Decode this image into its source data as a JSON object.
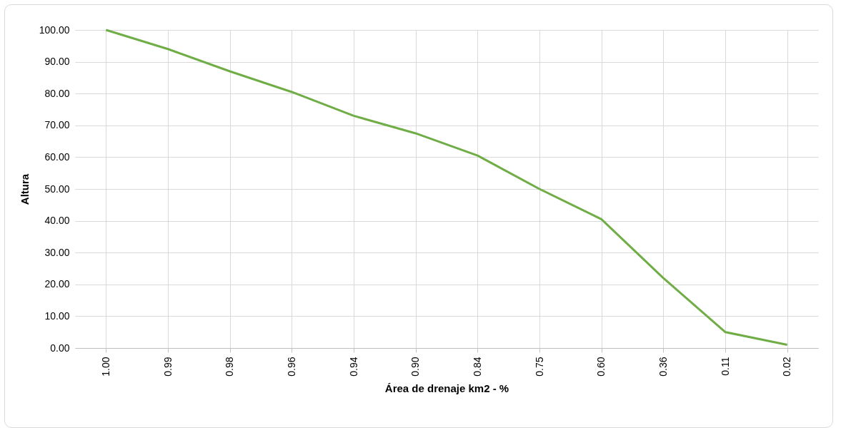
{
  "chart_data": {
    "type": "line",
    "xlabel": "Área de drenaje km2 - %",
    "ylabel": "Altura",
    "categories": [
      "1.00",
      "0.99",
      "0.98",
      "0.96",
      "0.94",
      "0.90",
      "0.84",
      "0.75",
      "0.60",
      "0.36",
      "0.11",
      "0.02"
    ],
    "series": [
      {
        "color": "#70ad47",
        "values": [
          100,
          94,
          87,
          80.5,
          73,
          67.5,
          60.5,
          50,
          40.5,
          22,
          5,
          1
        ]
      }
    ],
    "ylim": [
      0,
      100
    ],
    "yticks": [
      {
        "value": 0,
        "label": "0.00"
      },
      {
        "value": 10,
        "label": "10.00"
      },
      {
        "value": 20,
        "label": "20.00"
      },
      {
        "value": 30,
        "label": "30.00"
      },
      {
        "value": 40,
        "label": "40.00"
      },
      {
        "value": 50,
        "label": "50.00"
      },
      {
        "value": 60,
        "label": "60.00"
      },
      {
        "value": 70,
        "label": "70.00"
      },
      {
        "value": 80,
        "label": "80.00"
      },
      {
        "value": 90,
        "label": "90.00"
      },
      {
        "value": 100,
        "label": "100.00"
      }
    ],
    "grid": true,
    "legend": false,
    "marker": "none",
    "line_style": "solid"
  }
}
